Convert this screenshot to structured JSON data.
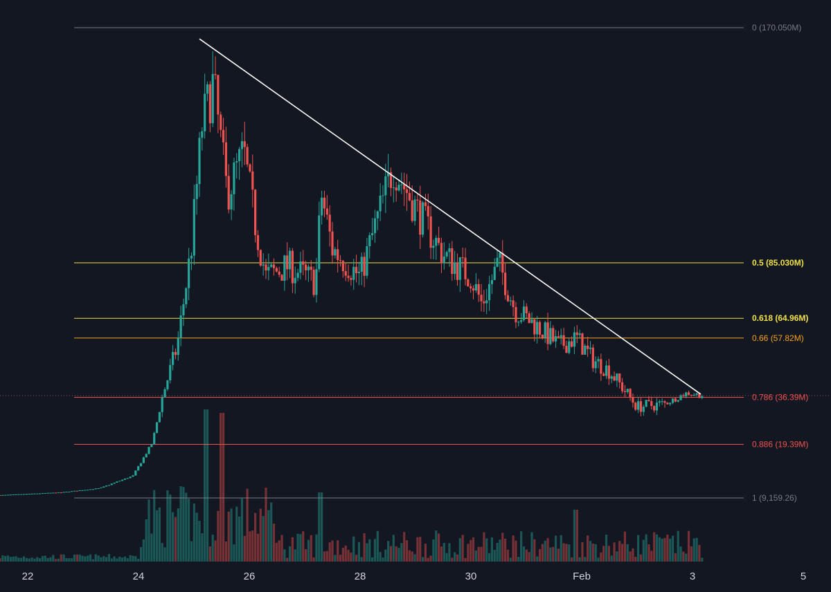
{
  "chart_data": {
    "type": "candlestick",
    "background": "#131722",
    "up_color": "#26a69a",
    "down_color": "#ef5350",
    "x_axis": {
      "ticks": [
        "22",
        "24",
        "26",
        "28",
        "30",
        "Feb",
        "3",
        "5"
      ],
      "range": [
        "Jan 21 12:00",
        "Feb 5 12:00"
      ]
    },
    "y_axis": {
      "min": 0,
      "max": 170050000,
      "scale": "linear"
    },
    "fib_levels": [
      {
        "ratio": 0,
        "value": 170050000,
        "label": "0 (170.050M)",
        "color": "#787b86",
        "bold": false
      },
      {
        "ratio": 0.5,
        "value": 85030000,
        "label": "0.5 (85.030M)",
        "color": "#f0e14a",
        "bold": true
      },
      {
        "ratio": 0.618,
        "value": 64960000,
        "label": "0.618 (64.96M)",
        "color": "#f0e14a",
        "bold": true
      },
      {
        "ratio": 0.66,
        "value": 57820000,
        "label": "0.66 (57.82M)",
        "color": "#f7a21b",
        "bold": false
      },
      {
        "ratio": 0.786,
        "value": 36390000,
        "label": "0.786 (36.39M)",
        "color": "#ef5350",
        "bold": false
      },
      {
        "ratio": 0.886,
        "value": 19390000,
        "label": "0.886 (19.39M)",
        "color": "#ef5350",
        "bold": false
      },
      {
        "ratio": 1,
        "value": 9159.26,
        "label": "1 (9,159.26)",
        "color": "#787b86",
        "bold": false
      }
    ],
    "trendline": {
      "from": {
        "t": 25.1,
        "v": 166000000
      },
      "to": {
        "t": 34.15,
        "v": 37500000
      },
      "color": "#ffffff"
    },
    "last_price": 37000000,
    "key_points": [
      {
        "t": 21.5,
        "v": 1000000
      },
      {
        "t": 22.6,
        "v": 2000000
      },
      {
        "t": 23.3,
        "v": 3500000
      },
      {
        "t": 23.9,
        "v": 8000000
      },
      {
        "t": 24.25,
        "v": 20000000
      },
      {
        "t": 24.45,
        "v": 38000000
      },
      {
        "t": 24.7,
        "v": 55000000
      },
      {
        "t": 24.95,
        "v": 90000000
      },
      {
        "t": 25.15,
        "v": 135000000
      },
      {
        "t": 25.35,
        "v": 150000000
      },
      {
        "t": 25.6,
        "v": 110000000
      },
      {
        "t": 25.9,
        "v": 125000000
      },
      {
        "t": 26.1,
        "v": 100000000
      },
      {
        "t": 26.3,
        "v": 80000000
      },
      {
        "t": 26.7,
        "v": 84000000
      },
      {
        "t": 27.2,
        "v": 78000000
      },
      {
        "t": 27.3,
        "v": 110000000
      },
      {
        "t": 27.5,
        "v": 90000000
      },
      {
        "t": 28.0,
        "v": 80000000
      },
      {
        "t": 28.6,
        "v": 120000000
      },
      {
        "t": 29.0,
        "v": 105000000
      },
      {
        "t": 29.5,
        "v": 88000000
      },
      {
        "t": 30.0,
        "v": 80000000
      },
      {
        "t": 30.2,
        "v": 70000000
      },
      {
        "t": 30.5,
        "v": 85000000
      },
      {
        "t": 30.8,
        "v": 68000000
      },
      {
        "t": 31.2,
        "v": 62000000
      },
      {
        "t": 31.6,
        "v": 55000000
      },
      {
        "t": 31.9,
        "v": 58000000
      },
      {
        "t": 32.2,
        "v": 50000000
      },
      {
        "t": 32.5,
        "v": 46000000
      },
      {
        "t": 33.0,
        "v": 33000000
      },
      {
        "t": 33.5,
        "v": 34000000
      },
      {
        "t": 33.9,
        "v": 38000000
      },
      {
        "t": 34.2,
        "v": 37000000
      }
    ]
  }
}
